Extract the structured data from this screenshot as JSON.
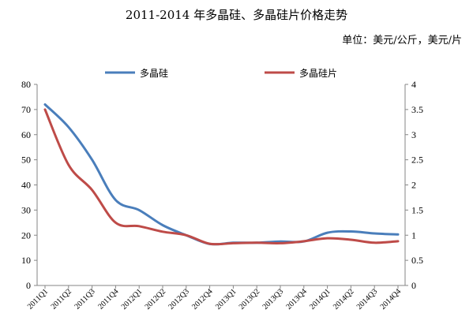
{
  "chart_data": {
    "type": "line",
    "title": "2011-2014 年多晶硅、多晶硅片价格走势",
    "unit_note": "单位：美元/公斤，美元/片",
    "categories": [
      "2011Q1",
      "2011Q2",
      "2011Q3",
      "2011Q4",
      "2012Q1",
      "2012Q2",
      "2012Q3",
      "2012Q4",
      "2013Q1",
      "2013Q2",
      "2013Q3",
      "2013Q4",
      "2014Q1",
      "2014Q2",
      "2014Q3",
      "2014Q4"
    ],
    "left_axis": {
      "ylim": [
        0,
        80
      ],
      "ticks": [
        "0",
        "10",
        "20",
        "30",
        "40",
        "50",
        "60",
        "70",
        "80"
      ]
    },
    "right_axis": {
      "ylim": [
        0,
        4
      ],
      "ticks": [
        "0",
        "0.5",
        "1",
        "1.5",
        "2",
        "2.5",
        "3",
        "3.5",
        "4"
      ]
    },
    "legend_position": "top",
    "grid": false,
    "series": [
      {
        "name": "多晶硅",
        "axis": "left",
        "color": "#4a7ebb",
        "values": [
          72,
          63,
          50,
          34,
          30,
          24,
          20,
          16.5,
          17,
          17,
          17.5,
          17.5,
          21,
          21.5,
          20.7,
          20.3
        ]
      },
      {
        "name": "多晶硅片",
        "axis": "right",
        "color": "#be4b48",
        "values": [
          3.5,
          2.4,
          1.9,
          1.25,
          1.18,
          1.07,
          1.0,
          0.83,
          0.84,
          0.85,
          0.84,
          0.88,
          0.94,
          0.91,
          0.85,
          0.88
        ]
      }
    ]
  }
}
